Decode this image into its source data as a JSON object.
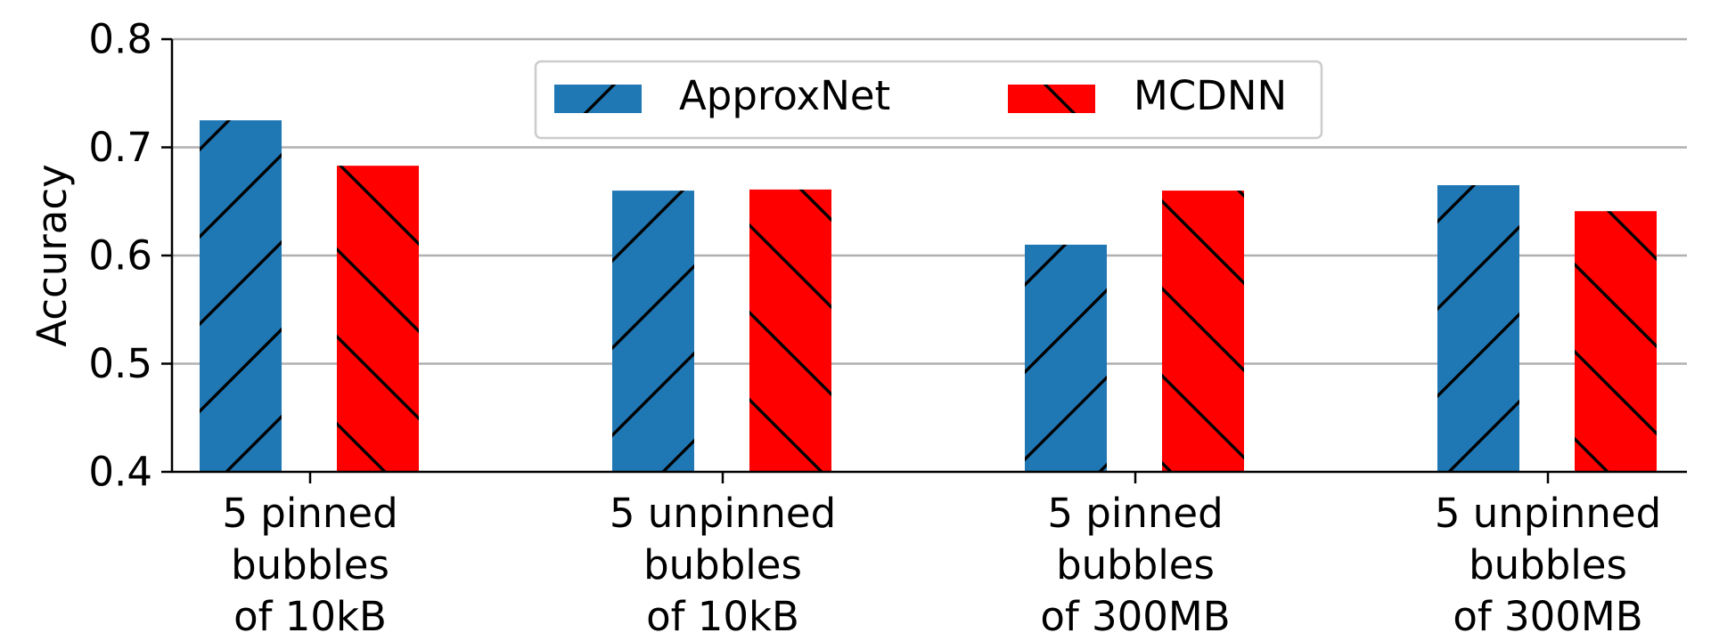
{
  "chart_data": {
    "type": "bar",
    "ylabel": "Accuracy",
    "ylim": [
      0.4,
      0.8
    ],
    "yticks": [
      "0.4",
      "0.5",
      "0.6",
      "0.7",
      "0.8"
    ],
    "grid": "horizontal",
    "legend_position": "top-center",
    "categories": [
      [
        "5 pinned",
        "bubbles",
        "of 10kB"
      ],
      [
        "5 unpinned",
        "bubbles",
        "of 10kB"
      ],
      [
        "5 pinned",
        "bubbles",
        "of 300MB"
      ],
      [
        "5 unpinned",
        "bubbles",
        "of 300MB"
      ]
    ],
    "series": [
      {
        "name": "ApproxNet",
        "color": "#1f77b4",
        "hatch": "forward-slash",
        "values": [
          0.725,
          0.66,
          0.61,
          0.665
        ]
      },
      {
        "name": "MCDNN",
        "color": "#ff0000",
        "hatch": "back-slash",
        "values": [
          0.683,
          0.661,
          0.66,
          0.641
        ]
      }
    ]
  }
}
